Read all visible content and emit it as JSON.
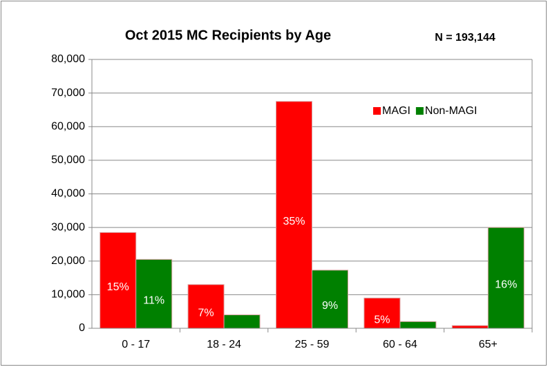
{
  "chart_data": {
    "type": "bar",
    "title": "Oct 2015 MC Recipients by Age",
    "annotation": "N = 193,144",
    "categories": [
      "0 - 17",
      "18 - 24",
      "25 - 59",
      "60 - 64",
      "65+"
    ],
    "series": [
      {
        "name": "MAGI",
        "color": "#ff0000",
        "values": [
          28500,
          13000,
          67500,
          9000,
          800
        ],
        "value_labels": [
          "15%",
          "7%",
          "35%",
          "5%",
          null
        ]
      },
      {
        "name": "Non-MAGI",
        "color": "#008000",
        "values": [
          20500,
          4000,
          17300,
          2000,
          30000
        ],
        "value_labels": [
          "11%",
          null,
          "9%",
          null,
          "16%"
        ]
      }
    ],
    "ylim": [
      0,
      80000
    ],
    "yticks": [
      0,
      {
        "value": 10000,
        "label": "10,000"
      },
      {
        "value": 20000,
        "label": "20,000"
      },
      {
        "value": 30000,
        "label": "30,000"
      },
      {
        "value": 40000,
        "label": "40,000"
      },
      {
        "value": 50000,
        "label": "50,000"
      },
      {
        "value": 60000,
        "label": "60,000"
      },
      {
        "value": 70000,
        "label": "70,000"
      },
      {
        "value": 80000,
        "label": "80,000"
      }
    ],
    "grid": true,
    "legend": "top-right"
  }
}
